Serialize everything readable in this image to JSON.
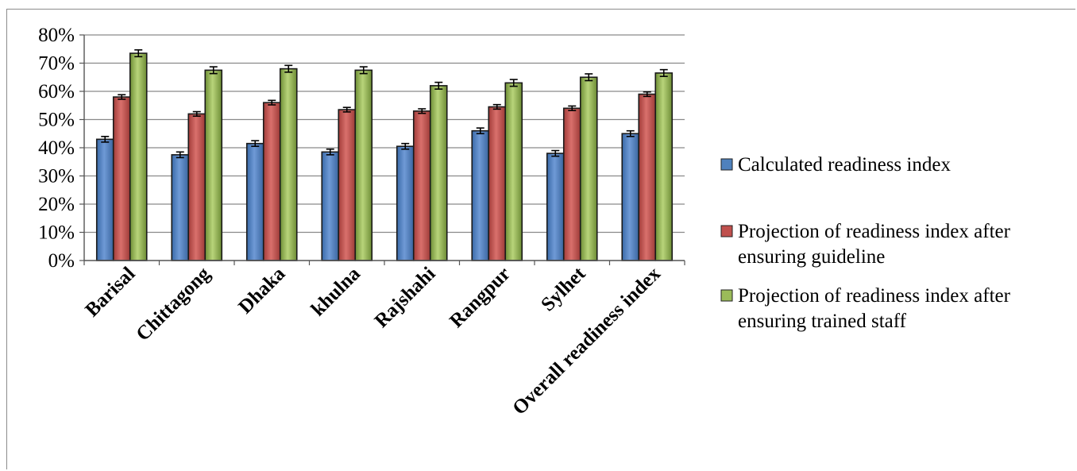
{
  "chart_data": {
    "type": "bar",
    "categories": [
      "Barisal",
      "Chittagong",
      "Dhaka",
      "khulna",
      "Rajshahi",
      "Rangpur",
      "Sylhet",
      "Overall readiness index"
    ],
    "series": [
      {
        "name": "Calculated readiness index",
        "values": [
          43,
          37.5,
          41.5,
          38.5,
          40.5,
          46,
          38,
          45
        ],
        "errors": [
          1,
          1,
          1,
          1,
          1,
          1,
          1,
          1
        ],
        "color": "#4f81bd"
      },
      {
        "name": "Projection of readiness index after ensuring  guideline",
        "values": [
          58,
          52,
          56,
          53.5,
          53,
          54.5,
          54,
          59
        ],
        "errors": [
          0.8,
          0.8,
          0.8,
          0.8,
          0.8,
          0.8,
          0.8,
          0.8
        ],
        "color": "#c0504d"
      },
      {
        "name": "Projection of readiness index after ensuring  trained staff",
        "values": [
          73.5,
          67.5,
          68,
          67.5,
          62,
          63,
          65,
          66.5
        ],
        "errors": [
          1.2,
          1.2,
          1.2,
          1.2,
          1.2,
          1.2,
          1.2,
          1.2
        ],
        "color": "#9bbb59"
      }
    ],
    "yticks": [
      "0%",
      "10%",
      "20%",
      "30%",
      "40%",
      "50%",
      "60%",
      "70%",
      "80%"
    ],
    "ylim": [
      0,
      80
    ],
    "grid": true,
    "legend_position": "right"
  }
}
